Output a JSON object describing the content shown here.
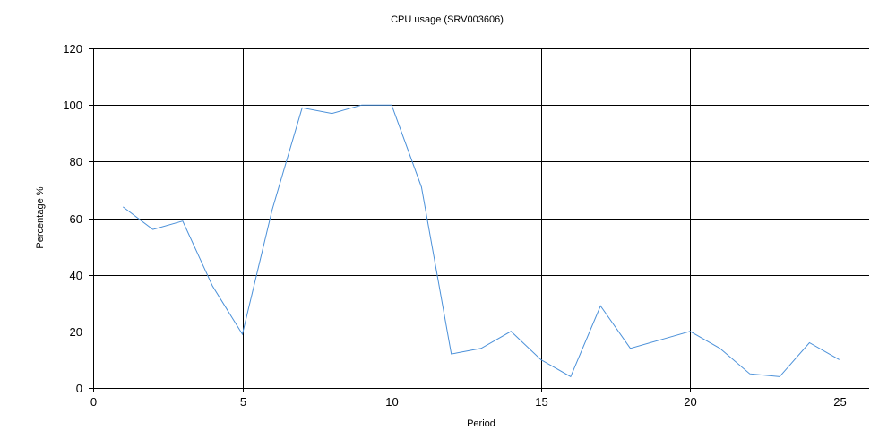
{
  "chart_data": {
    "type": "line",
    "title": "CPU usage (SRV003606)",
    "xlabel": "Period",
    "ylabel": "Percentage %",
    "xlim": [
      0,
      26
    ],
    "ylim": [
      0,
      120
    ],
    "xticks": [
      0,
      5,
      10,
      15,
      20,
      25
    ],
    "yticks": [
      0,
      20,
      40,
      60,
      80,
      100,
      120
    ],
    "grid": true,
    "series_color": "#4a90d9",
    "series": [
      {
        "x": [
          1,
          2,
          3,
          4,
          5,
          6,
          7,
          8,
          9,
          10,
          11,
          12,
          13,
          14,
          15,
          16,
          17,
          18,
          19,
          20,
          21,
          22,
          23,
          24,
          25
        ],
        "values": [
          64,
          56,
          59,
          36,
          19,
          63,
          99,
          97,
          100,
          100,
          71,
          12,
          14,
          20,
          10,
          4,
          29,
          14,
          17,
          20,
          14,
          5,
          4,
          16,
          10
        ]
      }
    ]
  }
}
